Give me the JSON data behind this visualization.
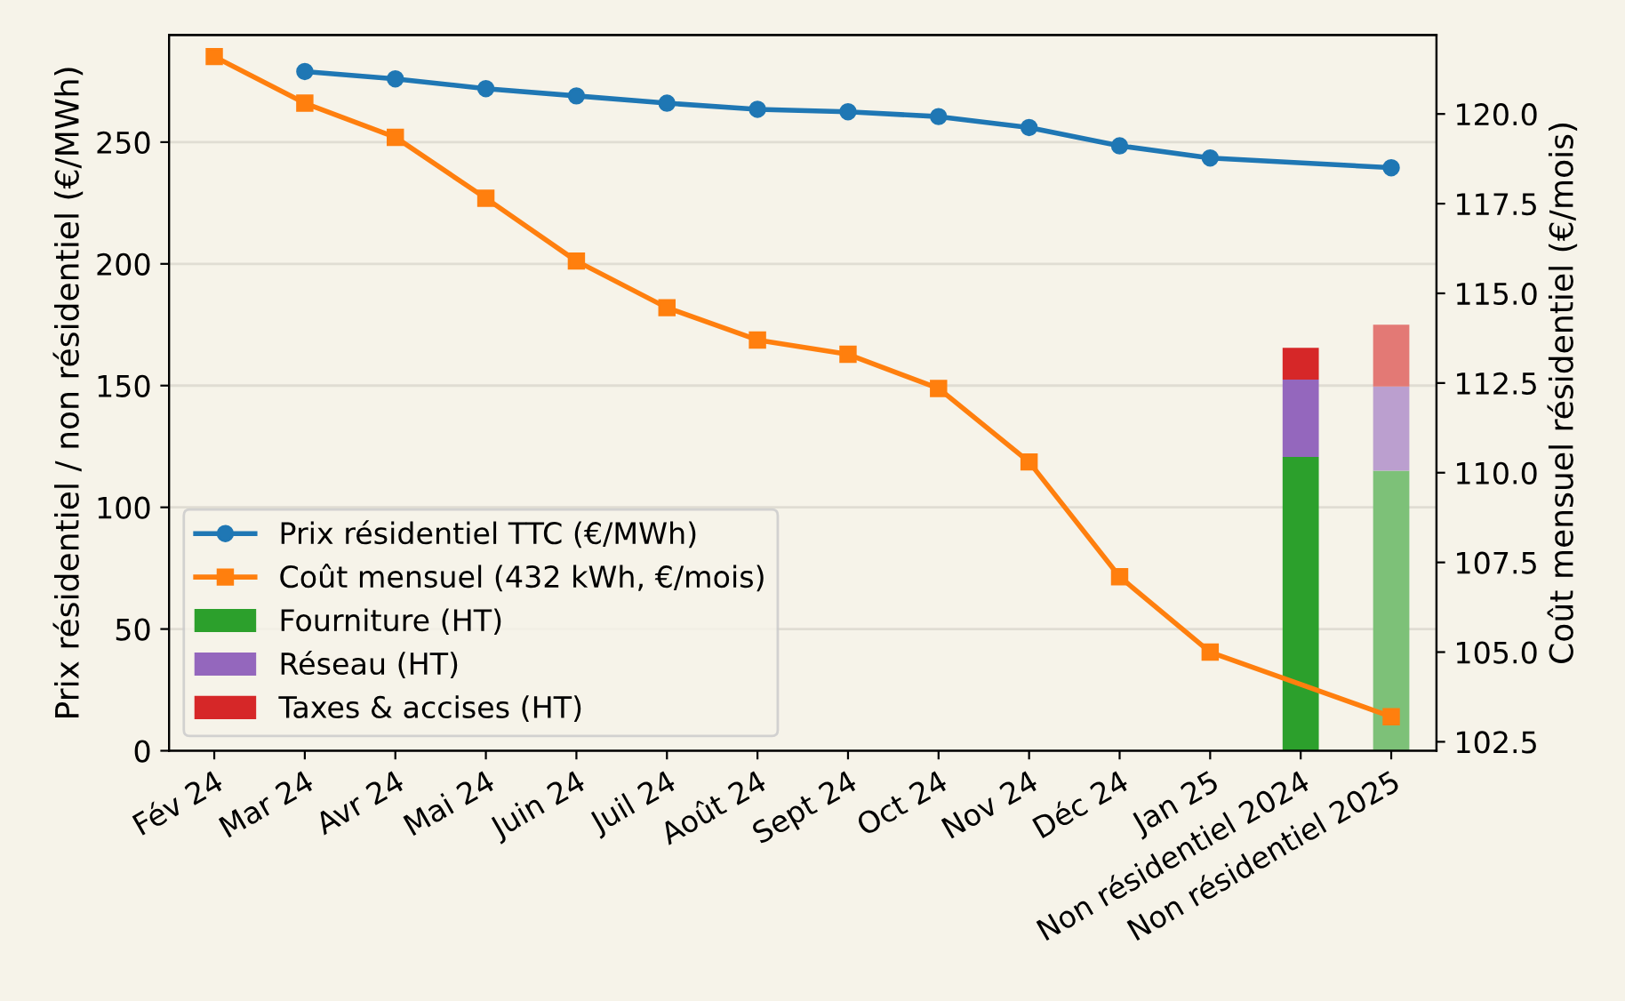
{
  "chart_data": {
    "type": "line",
    "ylabel": "Prix résidentiel / non résidentiel (€/MWh)",
    "y2label": "Coût mensuel résidentiel (€/mois)",
    "categories": [
      "Fév 24",
      "Mar 24",
      "Avr 24",
      "Mai 24",
      "Juin 24",
      "Juil 24",
      "Août 24",
      "Sept 24",
      "Oct 24",
      "Nov 24",
      "Déc 24",
      "Jan 25",
      "Non résidentiel 2024",
      "Non résidentiel 2025"
    ],
    "ylim": [
      0,
      294
    ],
    "yticks": [
      0,
      50,
      100,
      150,
      200,
      250
    ],
    "y2lim": [
      102.25,
      122.2
    ],
    "y2ticks": [
      {
        "value": 102.5,
        "label": "102.5"
      },
      {
        "value": 105,
        "label": "105.0"
      },
      {
        "value": 107.5,
        "label": "107.5"
      },
      {
        "value": 110,
        "label": "110.0"
      },
      {
        "value": 112.5,
        "label": "112.5"
      },
      {
        "value": 115,
        "label": "115.0"
      },
      {
        "value": 117.5,
        "label": "117.5"
      },
      {
        "value": 120,
        "label": "120.0"
      }
    ],
    "grid": "y",
    "legend": "bottom left",
    "stacked": true,
    "series": [
      {
        "name": "Prix résidentiel TTC (€/MWh)",
        "color": "#1f77b4",
        "marker": "circle",
        "values": [
          null,
          279,
          276,
          272,
          269,
          266,
          263.5,
          262.5,
          260.5,
          256,
          248.5,
          243.5,
          null,
          239.5
        ]
      },
      {
        "name": "Coût mensuel (432 kWh, €/mois)",
        "axis": "y2",
        "color": "#ff7f0e",
        "marker": "square",
        "values": [
          121.6,
          120.3,
          119.35,
          117.65,
          115.9,
          114.6,
          113.7,
          113.3,
          112.35,
          110.3,
          107.1,
          105.0,
          null,
          103.2
        ]
      },
      {
        "name": "Fourniture (HT)",
        "type": "bar",
        "color": "#2ca02c",
        "colors": [
          null,
          null,
          null,
          null,
          null,
          null,
          null,
          null,
          null,
          null,
          null,
          null,
          "#2ca02c",
          "#7dc178"
        ],
        "values": [
          null,
          null,
          null,
          null,
          null,
          null,
          null,
          null,
          null,
          null,
          null,
          null,
          120.7,
          115
        ]
      },
      {
        "name": "Réseau (HT)",
        "type": "bar",
        "color": "#9467bd",
        "colors": [
          null,
          null,
          null,
          null,
          null,
          null,
          null,
          null,
          null,
          null,
          null,
          null,
          "#9467bd",
          "#bb9fcf"
        ],
        "values": [
          null,
          null,
          null,
          null,
          null,
          null,
          null,
          null,
          null,
          null,
          null,
          null,
          31.8,
          34.6
        ]
      },
      {
        "name": "Taxes & accises (HT)",
        "type": "bar",
        "color": "#d62728",
        "colors": [
          null,
          null,
          null,
          null,
          null,
          null,
          null,
          null,
          null,
          null,
          null,
          null,
          "#d62728",
          "#e37975"
        ],
        "values": [
          null,
          null,
          null,
          null,
          null,
          null,
          null,
          null,
          null,
          null,
          null,
          null,
          13.0,
          25.4
        ]
      }
    ]
  }
}
